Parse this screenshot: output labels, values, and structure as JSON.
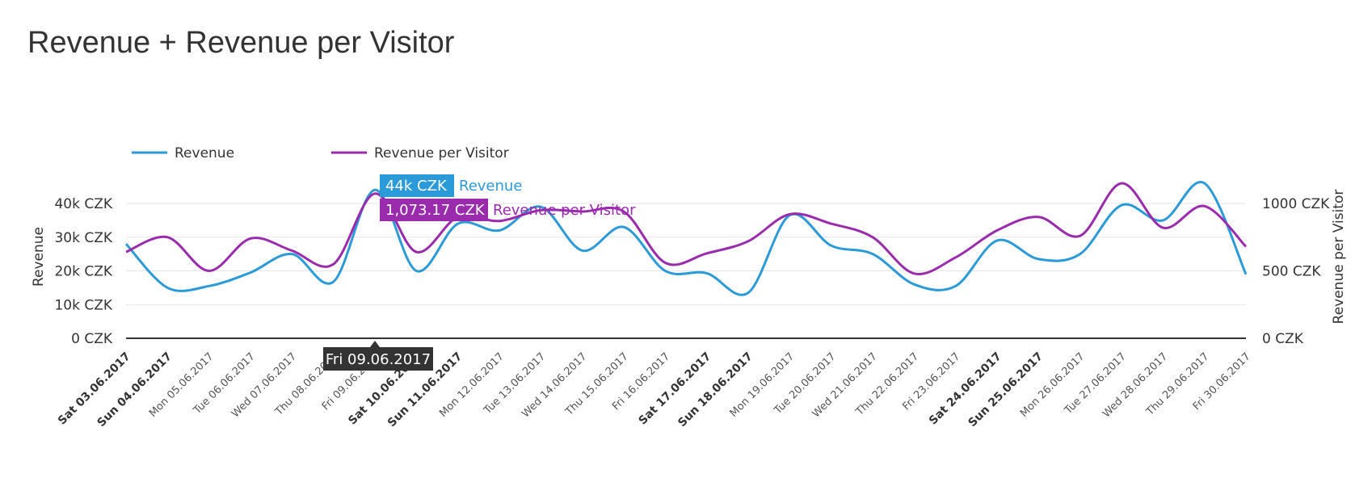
{
  "title": "Revenue + Revenue per Visitor",
  "chart_data": {
    "type": "line",
    "title": "Revenue + Revenue per Visitor",
    "categories": [
      "Sat 03.06.2017",
      "Sun 04.06.2017",
      "Mon 05.06.2017",
      "Tue 06.06.2017",
      "Wed 07.06.2017",
      "Thu 08.06.2017",
      "Fri 09.06.2017",
      "Sat 10.06.2017",
      "Sun 11.06.2017",
      "Mon 12.06.2017",
      "Tue 13.06.2017",
      "Wed 14.06.2017",
      "Thu 15.06.2017",
      "Fri 16.06.2017",
      "Sat 17.06.2017",
      "Sun 18.06.2017",
      "Mon 19.06.2017",
      "Tue 20.06.2017",
      "Wed 21.06.2017",
      "Thu 22.06.2017",
      "Fri 23.06.2017",
      "Sat 24.06.2017",
      "Sun 25.06.2017",
      "Mon 26.06.2017",
      "Tue 27.06.2017",
      "Wed 28.06.2017",
      "Thu 29.06.2017",
      "Fri 30.06.2017"
    ],
    "weekend": [
      true,
      true,
      false,
      false,
      false,
      false,
      false,
      true,
      true,
      false,
      false,
      false,
      false,
      false,
      true,
      true,
      false,
      false,
      false,
      false,
      false,
      true,
      true,
      false,
      false,
      false,
      false,
      false
    ],
    "series": [
      {
        "name": "Revenue",
        "axis": "left",
        "color": "#2b9ad8",
        "values": [
          28000,
          15000,
          15500,
          19500,
          25000,
          16800,
          44000,
          20000,
          34000,
          32000,
          39000,
          26000,
          33000,
          20000,
          19300,
          13500,
          36500,
          27500,
          25000,
          16000,
          15500,
          29000,
          23500,
          25000,
          39500,
          35000,
          46000,
          19000
        ]
      },
      {
        "name": "Revenue per Visitor",
        "axis": "right",
        "color": "#9b2bad",
        "values": [
          640,
          750,
          500,
          740,
          650,
          550,
          1073.17,
          640,
          900,
          870,
          950,
          940,
          940,
          560,
          630,
          720,
          920,
          850,
          750,
          480,
          600,
          800,
          900,
          760,
          1150,
          820,
          980,
          680
        ]
      }
    ],
    "y_left": {
      "label": "Revenue",
      "ticks": [
        "0 CZK",
        "10k CZK",
        "20k CZK",
        "30k CZK",
        "40k CZK"
      ],
      "min": 0,
      "max": 40000
    },
    "y_right": {
      "label": "Revenue per Visitor",
      "ticks": [
        "0 CZK",
        "500 CZK",
        "1000 CZK"
      ],
      "min": 0,
      "max": 1000
    },
    "legend": {
      "placement": "top-left",
      "items": [
        "Revenue",
        "Revenue per Visitor"
      ]
    },
    "tooltip": {
      "index": 6,
      "date": "Fri 09.06.2017",
      "revenue_value": "44k CZK",
      "revenue_label": "Revenue",
      "rpv_value": "1,073.17 CZK",
      "rpv_label": "Revenue per Visitor"
    },
    "grid": true
  }
}
